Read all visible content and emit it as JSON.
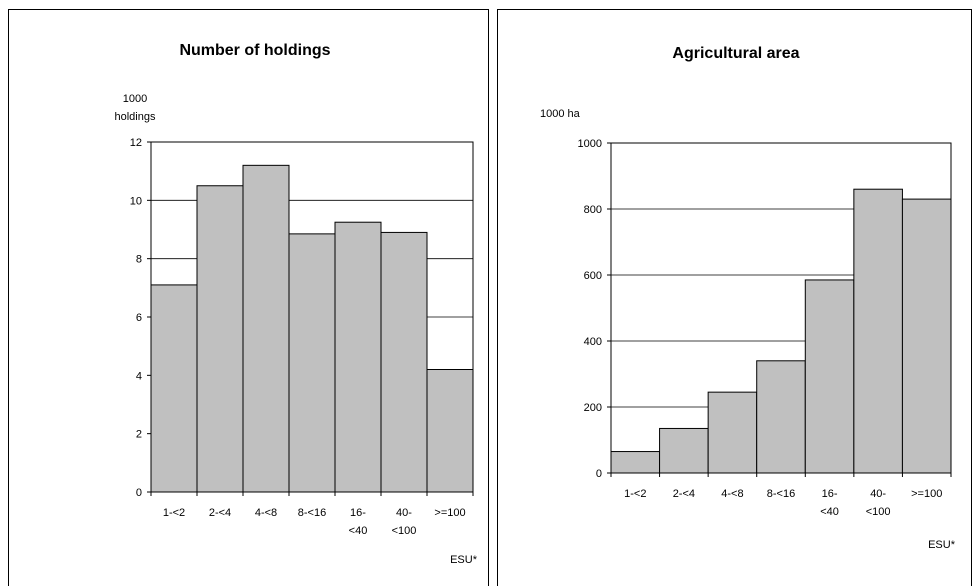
{
  "chart_data": [
    {
      "type": "bar",
      "title": "Number of holdings",
      "ylabel": [
        "1000",
        "holdings"
      ],
      "xlabel": "ESU*",
      "categories": [
        [
          "1-<2"
        ],
        [
          "2-<4"
        ],
        [
          "4-<8"
        ],
        [
          "8-<16"
        ],
        [
          "16-",
          "<40"
        ],
        [
          "40-",
          "<100"
        ],
        [
          ">=100"
        ]
      ],
      "values": [
        7.1,
        10.5,
        11.2,
        8.85,
        9.25,
        8.9,
        4.2
      ],
      "ylim": [
        0,
        12
      ],
      "yticks": [
        "0",
        "2",
        "4",
        "6",
        "8",
        "10",
        "12"
      ],
      "bar_color": "#c0c0c0",
      "grid": true
    },
    {
      "type": "bar",
      "title": "Agricultural area",
      "ylabel": [
        "1000 ha"
      ],
      "xlabel": "ESU*",
      "categories": [
        [
          "1-<2"
        ],
        [
          "2-<4"
        ],
        [
          "4-<8"
        ],
        [
          "8-<16"
        ],
        [
          "16-",
          "<40"
        ],
        [
          "40-",
          "<100"
        ],
        [
          ">=100"
        ]
      ],
      "values": [
        65,
        135,
        245,
        340,
        585,
        860,
        830
      ],
      "ylim": [
        0,
        1000
      ],
      "yticks": [
        "0",
        "200",
        "400",
        "600",
        "800",
        "1000"
      ],
      "bar_color": "#c0c0c0",
      "grid": true
    }
  ]
}
